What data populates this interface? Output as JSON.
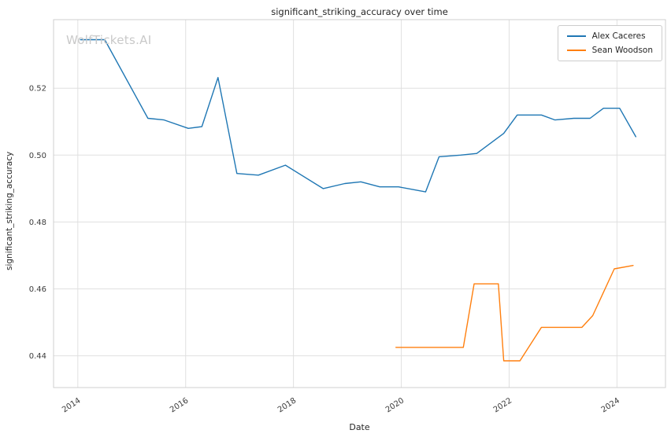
{
  "watermark": "WolfTickets.AI",
  "chart_data": {
    "type": "line",
    "title": "significant_striking_accuracy over time",
    "xlabel": "Date",
    "ylabel": "significant_striking_accuracy",
    "xlim": [
      2013.55,
      2024.9
    ],
    "ylim": [
      0.4305,
      0.5405
    ],
    "grid": true,
    "legend_position": "upper right",
    "x_ticks": [
      {
        "value": 2014,
        "label": "2014"
      },
      {
        "value": 2016,
        "label": "2016"
      },
      {
        "value": 2018,
        "label": "2018"
      },
      {
        "value": 2020,
        "label": "2020"
      },
      {
        "value": 2022,
        "label": "2022"
      },
      {
        "value": 2024,
        "label": "2024"
      }
    ],
    "y_ticks": [
      {
        "value": 0.44,
        "label": "0.44"
      },
      {
        "value": 0.46,
        "label": "0.46"
      },
      {
        "value": 0.48,
        "label": "0.48"
      },
      {
        "value": 0.5,
        "label": "0.50"
      },
      {
        "value": 0.52,
        "label": "0.52"
      }
    ],
    "series": [
      {
        "name": "Alex Caceres",
        "color": "#1f77b4",
        "points": [
          [
            2014.05,
            0.5345
          ],
          [
            2014.5,
            0.5345
          ],
          [
            2015.3,
            0.511
          ],
          [
            2015.6,
            0.5105
          ],
          [
            2016.05,
            0.508
          ],
          [
            2016.3,
            0.5085
          ],
          [
            2016.6,
            0.5232
          ],
          [
            2016.95,
            0.4945
          ],
          [
            2017.35,
            0.494
          ],
          [
            2017.85,
            0.497
          ],
          [
            2018.55,
            0.49
          ],
          [
            2018.95,
            0.4915
          ],
          [
            2019.25,
            0.492
          ],
          [
            2019.6,
            0.4905
          ],
          [
            2019.95,
            0.4905
          ],
          [
            2020.45,
            0.489
          ],
          [
            2020.7,
            0.4995
          ],
          [
            2021.1,
            0.5
          ],
          [
            2021.4,
            0.5005
          ],
          [
            2021.9,
            0.5065
          ],
          [
            2022.15,
            0.512
          ],
          [
            2022.6,
            0.512
          ],
          [
            2022.85,
            0.5105
          ],
          [
            2023.2,
            0.511
          ],
          [
            2023.5,
            0.511
          ],
          [
            2023.75,
            0.514
          ],
          [
            2024.05,
            0.514
          ],
          [
            2024.35,
            0.5055
          ]
        ]
      },
      {
        "name": "Sean Woodson",
        "color": "#ff7f0e",
        "points": [
          [
            2019.9,
            0.4425
          ],
          [
            2021.15,
            0.4425
          ],
          [
            2021.35,
            0.4615
          ],
          [
            2021.8,
            0.4615
          ],
          [
            2021.9,
            0.4385
          ],
          [
            2022.2,
            0.4385
          ],
          [
            2022.6,
            0.4485
          ],
          [
            2023.35,
            0.4485
          ],
          [
            2023.55,
            0.452
          ],
          [
            2023.95,
            0.466
          ],
          [
            2024.3,
            0.467
          ]
        ]
      }
    ]
  }
}
